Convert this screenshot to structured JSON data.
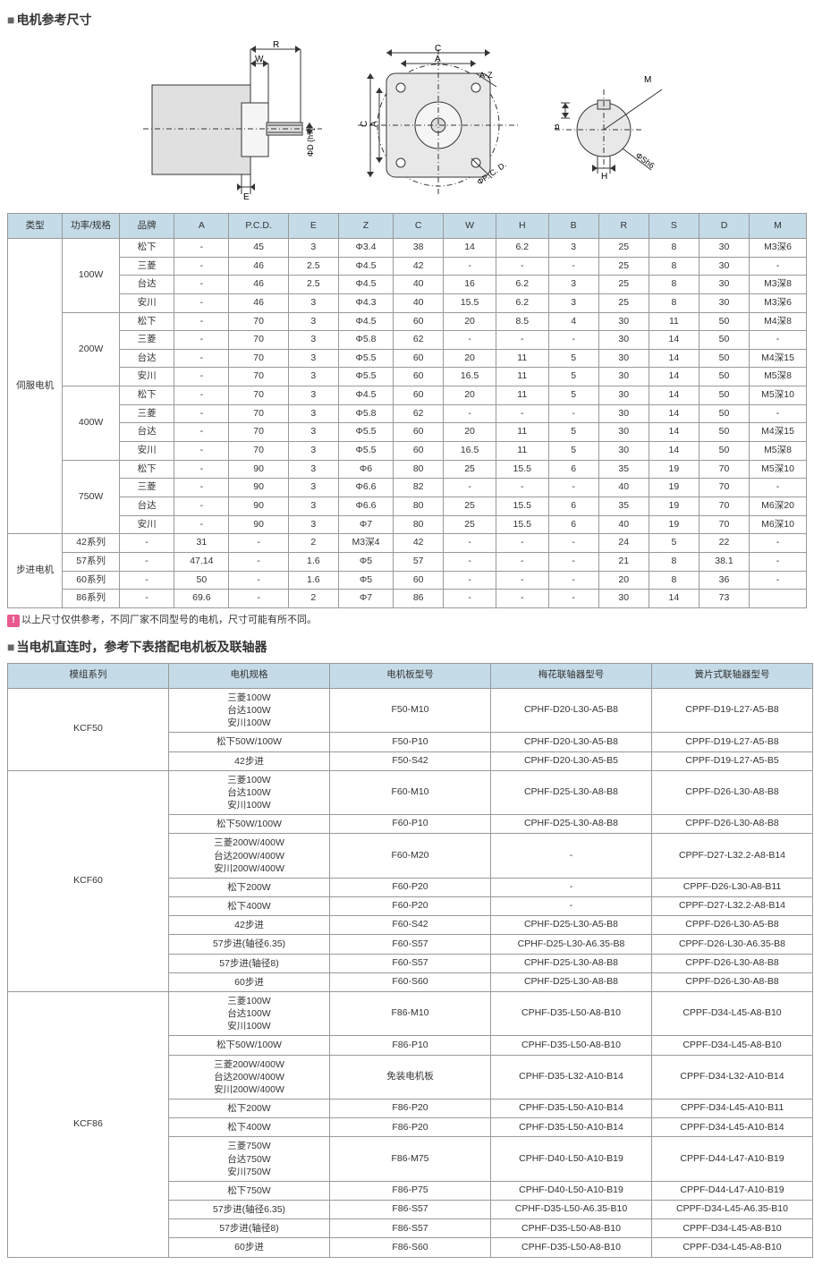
{
  "title1": "电机参考尺寸",
  "diagram_labels": {
    "left": {
      "R": "R",
      "W": "W",
      "E": "E",
      "D": "ΦD (h7)"
    },
    "mid": {
      "C": "C",
      "A": "A",
      "A-Z": "A-Z",
      "PCD": "ΦP. C. D."
    },
    "right": {
      "M": "M",
      "B": "B",
      "H": "H",
      "S": "ΦSh6"
    }
  },
  "table1": {
    "columns": [
      "类型",
      "功率/规格",
      "品牌",
      "A",
      "P.C.D.",
      "E",
      "Z",
      "C",
      "W",
      "H",
      "B",
      "R",
      "S",
      "D",
      "M"
    ],
    "col_widths": [
      "48",
      "50",
      "48",
      "48",
      "52",
      "44",
      "48",
      "44",
      "46",
      "46",
      "44",
      "44",
      "44",
      "44",
      "50"
    ],
    "header_bg": "#c5dbe8",
    "groups": [
      {
        "type": "伺服电机",
        "type_rowspan": 16,
        "powers": [
          {
            "power": "100W",
            "rows": [
              [
                "松下",
                "-",
                "45",
                "3",
                "Φ3.4",
                "38",
                "14",
                "6.2",
                "3",
                "25",
                "8",
                "30",
                "M3深6"
              ],
              [
                "三菱",
                "-",
                "46",
                "2.5",
                "Φ4.5",
                "42",
                "-",
                "-",
                "-",
                "25",
                "8",
                "30",
                "-"
              ],
              [
                "台达",
                "-",
                "46",
                "2.5",
                "Φ4.5",
                "40",
                "16",
                "6.2",
                "3",
                "25",
                "8",
                "30",
                "M3深8"
              ],
              [
                "安川",
                "-",
                "46",
                "3",
                "Φ4.3",
                "40",
                "15.5",
                "6.2",
                "3",
                "25",
                "8",
                "30",
                "M3深6"
              ]
            ]
          },
          {
            "power": "200W",
            "rows": [
              [
                "松下",
                "-",
                "70",
                "3",
                "Φ4.5",
                "60",
                "20",
                "8.5",
                "4",
                "30",
                "11",
                "50",
                "M4深8"
              ],
              [
                "三菱",
                "-",
                "70",
                "3",
                "Φ5.8",
                "62",
                "-",
                "-",
                "-",
                "30",
                "14",
                "50",
                "-"
              ],
              [
                "台达",
                "-",
                "70",
                "3",
                "Φ5.5",
                "60",
                "20",
                "11",
                "5",
                "30",
                "14",
                "50",
                "M4深15"
              ],
              [
                "安川",
                "-",
                "70",
                "3",
                "Φ5.5",
                "60",
                "16.5",
                "11",
                "5",
                "30",
                "14",
                "50",
                "M5深8"
              ]
            ]
          },
          {
            "power": "400W",
            "rows": [
              [
                "松下",
                "-",
                "70",
                "3",
                "Φ4.5",
                "60",
                "20",
                "11",
                "5",
                "30",
                "14",
                "50",
                "M5深10"
              ],
              [
                "三菱",
                "-",
                "70",
                "3",
                "Φ5.8",
                "62",
                "-",
                "-",
                "-",
                "30",
                "14",
                "50",
                "-"
              ],
              [
                "台达",
                "-",
                "70",
                "3",
                "Φ5.5",
                "60",
                "20",
                "11",
                "5",
                "30",
                "14",
                "50",
                "M4深15"
              ],
              [
                "安川",
                "-",
                "70",
                "3",
                "Φ5.5",
                "60",
                "16.5",
                "11",
                "5",
                "30",
                "14",
                "50",
                "M5深8"
              ]
            ]
          },
          {
            "power": "750W",
            "rows": [
              [
                "松下",
                "-",
                "90",
                "3",
                "Φ6",
                "80",
                "25",
                "15.5",
                "6",
                "35",
                "19",
                "70",
                "M5深10"
              ],
              [
                "三菱",
                "-",
                "90",
                "3",
                "Φ6.6",
                "82",
                "-",
                "-",
                "-",
                "40",
                "19",
                "70",
                "-"
              ],
              [
                "台达",
                "-",
                "90",
                "3",
                "Φ6.6",
                "80",
                "25",
                "15.5",
                "6",
                "35",
                "19",
                "70",
                "M6深20"
              ],
              [
                "安川",
                "-",
                "90",
                "3",
                "Φ7",
                "80",
                "25",
                "15.5",
                "6",
                "40",
                "19",
                "70",
                "M6深10"
              ]
            ]
          }
        ]
      },
      {
        "type": "步进电机",
        "type_rowspan": 4,
        "powers": [
          {
            "power": "42系列",
            "rows": [
              [
                "-",
                "31",
                "-",
                "2",
                "M3深4",
                "42",
                "-",
                "-",
                "-",
                "24",
                "5",
                "22",
                "-"
              ]
            ]
          },
          {
            "power": "57系列",
            "rows": [
              [
                "-",
                "47.14",
                "-",
                "1.6",
                "Φ5",
                "57",
                "-",
                "-",
                "-",
                "21",
                "8",
                "38.1",
                "-"
              ]
            ]
          },
          {
            "power": "60系列",
            "rows": [
              [
                "-",
                "50",
                "-",
                "1.6",
                "Φ5",
                "60",
                "-",
                "-",
                "-",
                "20",
                "8",
                "36",
                "-"
              ]
            ]
          },
          {
            "power": "86系列",
            "rows": [
              [
                "-",
                "69.6",
                "-",
                "2",
                "Φ7",
                "86",
                "-",
                "-",
                "-",
                "30",
                "14",
                "73",
                ""
              ]
            ]
          }
        ]
      }
    ]
  },
  "note_text": "以上尺寸仅供参考，不同厂家不同型号的电机，尺寸可能有所不同。",
  "title2": "当电机直连时，参考下表搭配电机板及联轴器",
  "table2": {
    "columns": [
      "模组系列",
      "电机规格",
      "电机板型号",
      "梅花联轴器型号",
      "簧片式联轴器型号"
    ],
    "col_widths": [
      "180",
      "180",
      "180",
      "180",
      "180"
    ],
    "header_bg": "#c5dbe8",
    "groups": [
      {
        "series": "KCF50",
        "rows": [
          {
            "spec_lines": [
              "三菱100W",
              "台达100W",
              "安川100W"
            ],
            "board": "F50-M10",
            "plum": "CPHF-D20-L30-A5-B8",
            "reed": "CPPF-D19-L27-A5-B8"
          },
          {
            "spec_lines": [
              "松下50W/100W"
            ],
            "board": "F50-P10",
            "plum": "CPHF-D20-L30-A5-B8",
            "reed": "CPPF-D19-L27-A5-B8"
          },
          {
            "spec_lines": [
              "42步进"
            ],
            "board": "F50-S42",
            "plum": "CPHF-D20-L30-A5-B5",
            "reed": "CPPF-D19-L27-A5-B5"
          }
        ]
      },
      {
        "series": "KCF60",
        "rows": [
          {
            "spec_lines": [
              "三菱100W",
              "台达100W",
              "安川100W"
            ],
            "board": "F60-M10",
            "plum": "CPHF-D25-L30-A8-B8",
            "reed": "CPPF-D26-L30-A8-B8"
          },
          {
            "spec_lines": [
              "松下50W/100W"
            ],
            "board": "F60-P10",
            "plum": "CPHF-D25-L30-A8-B8",
            "reed": "CPPF-D26-L30-A8-B8"
          },
          {
            "spec_lines": [
              "三菱200W/400W",
              "台达200W/400W",
              "安川200W/400W"
            ],
            "board": "F60-M20",
            "plum": "-",
            "reed": "CPPF-D27-L32.2-A8-B14"
          },
          {
            "spec_lines": [
              "松下200W"
            ],
            "board": "F60-P20",
            "plum": "-",
            "reed": "CPPF-D26-L30-A8-B11"
          },
          {
            "spec_lines": [
              "松下400W"
            ],
            "board": "F60-P20",
            "plum": "-",
            "reed": "CPPF-D27-L32.2-A8-B14"
          },
          {
            "spec_lines": [
              "42步进"
            ],
            "board": "F60-S42",
            "plum": "CPHF-D25-L30-A5-B8",
            "reed": "CPPF-D26-L30-A5-B8"
          },
          {
            "spec_lines": [
              "57步进(轴径6.35)"
            ],
            "board": "F60-S57",
            "plum": "CPHF-D25-L30-A6.35-B8",
            "reed": "CPPF-D26-L30-A6.35-B8"
          },
          {
            "spec_lines": [
              "57步进(轴径8)"
            ],
            "board": "F60-S57",
            "plum": "CPHF-D25-L30-A8-B8",
            "reed": "CPPF-D26-L30-A8-B8"
          },
          {
            "spec_lines": [
              "60步进"
            ],
            "board": "F60-S60",
            "plum": "CPHF-D25-L30-A8-B8",
            "reed": "CPPF-D26-L30-A8-B8"
          }
        ]
      },
      {
        "series": "KCF86",
        "rows": [
          {
            "spec_lines": [
              "三菱100W",
              "台达100W",
              "安川100W"
            ],
            "board": "F86-M10",
            "plum": "CPHF-D35-L50-A8-B10",
            "reed": "CPPF-D34-L45-A8-B10"
          },
          {
            "spec_lines": [
              "松下50W/100W"
            ],
            "board": "F86-P10",
            "plum": "CPHF-D35-L50-A8-B10",
            "reed": "CPPF-D34-L45-A8-B10"
          },
          {
            "spec_lines": [
              "三菱200W/400W",
              "台达200W/400W",
              "安川200W/400W"
            ],
            "board": "免装电机板",
            "plum": "CPHF-D35-L32-A10-B14",
            "reed": "CPPF-D34-L32-A10-B14"
          },
          {
            "spec_lines": [
              "松下200W"
            ],
            "board": "F86-P20",
            "plum": "CPHF-D35-L50-A10-B14",
            "reed": "CPPF-D34-L45-A10-B11"
          },
          {
            "spec_lines": [
              "松下400W"
            ],
            "board": "F86-P20",
            "plum": "CPHF-D35-L50-A10-B14",
            "reed": "CPPF-D34-L45-A10-B14"
          },
          {
            "spec_lines": [
              "三菱750W",
              "台达750W",
              "安川750W"
            ],
            "board": "F86-M75",
            "plum": "CPHF-D40-L50-A10-B19",
            "reed": "CPPF-D44-L47-A10-B19"
          },
          {
            "spec_lines": [
              "松下750W"
            ],
            "board": "F86-P75",
            "plum": "CPHF-D40-L50-A10-B19",
            "reed": "CPPF-D44-L47-A10-B19"
          },
          {
            "spec_lines": [
              "57步进(轴径6.35)"
            ],
            "board": "F86-S57",
            "plum": "CPHF-D35-L50-A6.35-B10",
            "reed": "CPPF-D34-L45-A6.35-B10"
          },
          {
            "spec_lines": [
              "57步进(轴径8)"
            ],
            "board": "F86-S57",
            "plum": "CPHF-D35-L50-A8-B10",
            "reed": "CPPF-D34-L45-A8-B10"
          },
          {
            "spec_lines": [
              "60步进"
            ],
            "board": "F86-S60",
            "plum": "CPHF-D35-L50-A8-B10",
            "reed": "CPPF-D34-L45-A8-B10"
          }
        ]
      }
    ]
  }
}
